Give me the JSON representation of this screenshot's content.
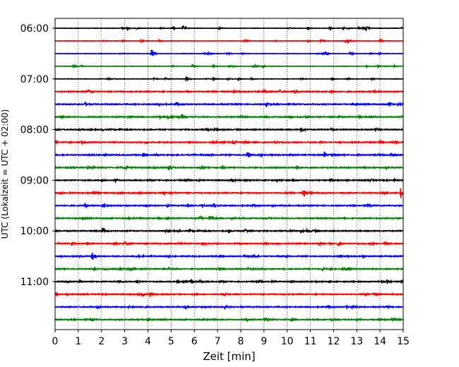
{
  "chart_data": {
    "type": "line",
    "title": "",
    "xlabel": "Zeit  [min]",
    "ylabel": "UTC (Lokalzeit = UTC + 02:00)",
    "xlim": [
      0,
      15
    ],
    "x_ticks": [
      "0",
      "1",
      "2",
      "3",
      "4",
      "5",
      "6",
      "7",
      "8",
      "9",
      "10",
      "11",
      "12",
      "13",
      "14",
      "15"
    ],
    "y_tick_labels": [
      "06:00",
      "07:00",
      "08:00",
      "09:00",
      "10:00",
      "11:00"
    ],
    "grid": "vertical dotted at each minute",
    "trace_interval_minutes": 15,
    "first_trace": "06:00",
    "trace_count": 24,
    "colors": [
      "#000000",
      "#ff0000",
      "#0000ff",
      "#008000"
    ],
    "events": [
      {
        "trace": 0,
        "t": 3.1,
        "a": 0.35
      },
      {
        "trace": 0,
        "t": 10.9,
        "a": 0.35
      },
      {
        "trace": 0,
        "t": 13.4,
        "a": 0.5
      },
      {
        "trace": 1,
        "t": 8.2,
        "a": 0.3
      },
      {
        "trace": 2,
        "t": 4.15,
        "a": 1.0
      },
      {
        "trace": 2,
        "t": 12.7,
        "a": 0.4
      },
      {
        "trace": 3,
        "t": 13.9,
        "a": 0.35
      },
      {
        "trace": 4,
        "t": 5.65,
        "a": 0.65
      },
      {
        "trace": 4,
        "t": 7.9,
        "a": 0.3
      },
      {
        "trace": 5,
        "t": 9.0,
        "a": 0.4
      },
      {
        "trace": 5,
        "t": 11.9,
        "a": 0.35
      },
      {
        "trace": 6,
        "t": 1.3,
        "a": 0.45
      },
      {
        "trace": 6,
        "t": 9.1,
        "a": 0.4
      },
      {
        "trace": 7,
        "t": 5.0,
        "a": 0.4
      },
      {
        "trace": 7,
        "t": 10.1,
        "a": 0.35
      },
      {
        "trace": 8,
        "t": 10.6,
        "a": 0.6
      },
      {
        "trace": 8,
        "t": 13.8,
        "a": 0.35
      },
      {
        "trace": 9,
        "t": 6.8,
        "a": 0.35
      },
      {
        "trace": 9,
        "t": 14.0,
        "a": 0.35
      },
      {
        "trace": 10,
        "t": 8.3,
        "a": 0.85
      },
      {
        "trace": 10,
        "t": 11.6,
        "a": 0.75
      },
      {
        "trace": 11,
        "t": 4.9,
        "a": 0.9
      },
      {
        "trace": 11,
        "t": 7.2,
        "a": 0.35
      },
      {
        "trace": 12,
        "t": 2.6,
        "a": 0.4
      },
      {
        "trace": 12,
        "t": 7.6,
        "a": 0.35
      },
      {
        "trace": 13,
        "t": 10.7,
        "a": 0.7
      },
      {
        "trace": 13,
        "t": 14.9,
        "a": 1.3
      },
      {
        "trace": 14,
        "t": 1.3,
        "a": 0.5
      },
      {
        "trace": 14,
        "t": 3.9,
        "a": 0.4
      },
      {
        "trace": 15,
        "t": 7.6,
        "a": 0.3
      },
      {
        "trace": 16,
        "t": 2.05,
        "a": 0.85
      },
      {
        "trace": 16,
        "t": 8.2,
        "a": 0.4
      },
      {
        "trace": 17,
        "t": 12.2,
        "a": 0.6
      },
      {
        "trace": 17,
        "t": 14.2,
        "a": 0.35
      },
      {
        "trace": 18,
        "t": 1.6,
        "a": 0.85
      },
      {
        "trace": 18,
        "t": 8.6,
        "a": 0.4
      },
      {
        "trace": 19,
        "t": 12.4,
        "a": 0.3
      },
      {
        "trace": 20,
        "t": 3.5,
        "a": 0.35
      },
      {
        "trace": 20,
        "t": 14.3,
        "a": 0.35
      },
      {
        "trace": 21,
        "t": 3.75,
        "a": 0.45
      },
      {
        "trace": 21,
        "t": 13.3,
        "a": 0.35
      },
      {
        "trace": 22,
        "t": 5.6,
        "a": 0.45
      },
      {
        "trace": 22,
        "t": 12.8,
        "a": 0.35
      },
      {
        "trace": 23,
        "t": 9.0,
        "a": 0.5
      },
      {
        "trace": 23,
        "t": 4.0,
        "a": 0.35
      }
    ]
  }
}
